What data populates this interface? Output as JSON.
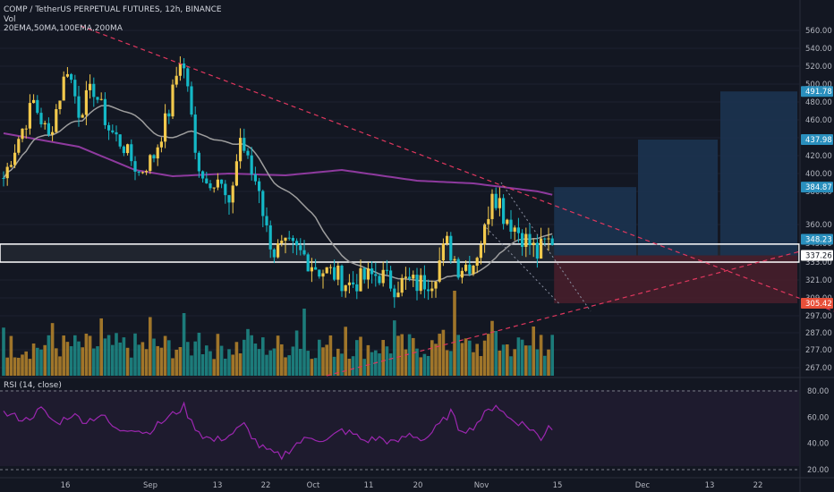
{
  "header": {
    "symbol": "COMP / TetherUS PERPETUAL FUTURES, 12h, BINANCE",
    "volume_label": "Vol",
    "indicators": "20EMA,50MA,100EMA,200MA"
  },
  "rsi": {
    "label": "RSI (14, close)"
  },
  "colors": {
    "background": "#131722",
    "up_candle": "#f2c94c",
    "down_candle": "#14b8c6",
    "vol_up": "#b8862b",
    "vol_down": "#1f8d8a",
    "ma_gray": "#9e9e9e",
    "ma_purple": "#8e3a9e",
    "trendline": "#e0375e",
    "rsi_line": "#9c27b0",
    "tp_zone": "#1c3552",
    "sl_zone": "#4a1f2b"
  },
  "chart_data": {
    "type": "candlestick",
    "x_ticks": [
      "16",
      "Sep",
      "13",
      "22",
      "Oct",
      "11",
      "20",
      "Nov",
      "15",
      "Dec",
      "13",
      "22"
    ],
    "y_ticks": [
      560.0,
      540.0,
      520.0,
      500.0,
      480.0,
      460.0,
      440.0,
      420.0,
      400.0,
      380.0,
      360.0,
      345.0,
      333.0,
      321.0,
      309.0,
      297.0,
      287.0,
      277.0,
      267.0
    ],
    "price_labels": [
      {
        "value": "491.78",
        "color": "#2196f3"
      },
      {
        "value": "437.98",
        "color": "#2196f3"
      },
      {
        "value": "384.87",
        "color": "#2196f3"
      },
      {
        "value": "348.23",
        "color": "#2196f3"
      },
      {
        "value": "337.26",
        "color": "#ffffff"
      },
      {
        "value": "305.42",
        "color": "#f7525f"
      }
    ],
    "ylim": [
      262,
      565
    ],
    "zones": [
      {
        "name": "support-zone",
        "low": 333.0,
        "high": 344.5
      },
      {
        "name": "target-1",
        "low": 337.26,
        "high": 384.87
      },
      {
        "name": "target-2",
        "low": 337.26,
        "high": 437.98
      },
      {
        "name": "target-3",
        "low": 337.26,
        "high": 491.78
      },
      {
        "name": "stop-loss",
        "low": 305.42,
        "high": 337.26
      }
    ],
    "rsi": {
      "levels": [
        80,
        60,
        40,
        20
      ],
      "ylim": [
        18,
        84
      ]
    }
  }
}
